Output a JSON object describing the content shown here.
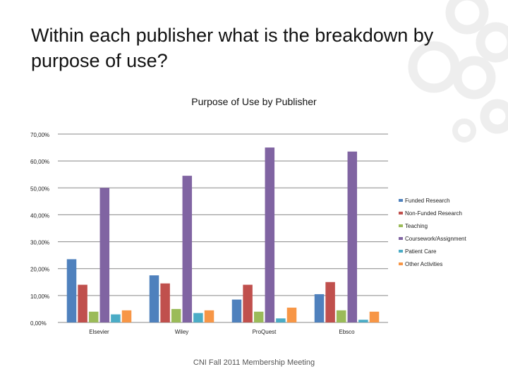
{
  "slide": {
    "title": "Within each publisher what is the breakdown by purpose of use?",
    "footer": "CNI Fall 2011 Membership Meeting"
  },
  "colors": {
    "decor": "#eeeeee",
    "gridline": "#888888",
    "series": [
      "#4f81bd",
      "#c0504d",
      "#9bbb59",
      "#8064a2",
      "#4bacc6",
      "#f79646"
    ]
  },
  "chart_data": {
    "type": "bar",
    "title": "Purpose of Use by Publisher",
    "xlabel": "",
    "ylabel": "",
    "categories": [
      "Elsevier",
      "Wiley",
      "ProQuest",
      "Ebsco"
    ],
    "ylim": [
      0,
      70
    ],
    "yticks": [
      0,
      10,
      20,
      30,
      40,
      50,
      60,
      70
    ],
    "ytick_labels": [
      "0,00%",
      "10,00%",
      "20,00%",
      "30,00%",
      "40,00%",
      "50,00%",
      "60,00%",
      "70,00%"
    ],
    "grid": true,
    "legend_position": "right",
    "series": [
      {
        "name": "Funded Research",
        "values": [
          23.5,
          17.5,
          8.5,
          10.5
        ]
      },
      {
        "name": "Non-Funded Research",
        "values": [
          14,
          14.5,
          14,
          15
        ]
      },
      {
        "name": "Teaching",
        "values": [
          4,
          5,
          4,
          4.5
        ]
      },
      {
        "name": "Coursework/Assignment",
        "values": [
          50,
          54.5,
          65,
          63.5
        ]
      },
      {
        "name": "Patient Care",
        "values": [
          3,
          3.5,
          1.5,
          1
        ]
      },
      {
        "name": "Other Activities",
        "values": [
          4.5,
          4.5,
          5.5,
          4
        ]
      }
    ]
  }
}
